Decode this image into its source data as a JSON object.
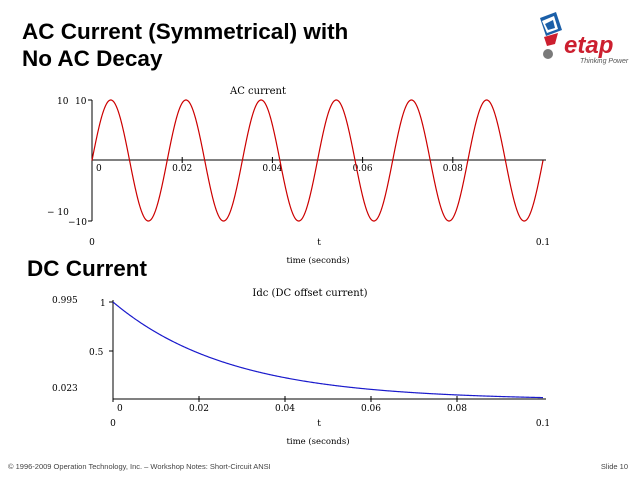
{
  "slide": {
    "title_line1": "AC Current (Symmetrical) with",
    "title_line2": "No AC Decay",
    "section_title": "DC Current",
    "footer": "© 1996-2009 Operation Technology, Inc. – Workshop Notes: Short-Circuit ANSI",
    "slide_number": "Slide 10"
  },
  "logo": {
    "text": "etap",
    "tagline": "Thinking Power",
    "colors": {
      "brand_red": "#cc1f2f",
      "brand_blue": "#1b5fa8",
      "gray": "#7a7a7a"
    }
  },
  "chart_data": [
    {
      "type": "line",
      "title": "AC current",
      "xlabel": "time (seconds)",
      "x_axis_var": "t",
      "xlim": [
        0,
        0.1
      ],
      "ylim": [
        -10,
        10
      ],
      "x_range_labels": [
        "0",
        "0.1"
      ],
      "y_range_labels": [
        "10",
        "− 10"
      ],
      "x_ticks": [
        0,
        0.02,
        0.04,
        0.06,
        0.08
      ],
      "x_tick_labels": [
        "0",
        "0.02",
        "0.04",
        "0.06",
        "0.08"
      ],
      "y_ticks": [
        10,
        -10
      ],
      "y_tick_labels": [
        "10",
        "−10"
      ],
      "color": "#cc0000",
      "series": [
        {
          "function": "10*sin(2*pi*60*t)",
          "amplitude": 10,
          "frequency_hz": 60
        }
      ]
    },
    {
      "type": "line",
      "title": "Idc (DC offset current)",
      "xlabel": "time (seconds)",
      "x_axis_var": "t",
      "xlim": [
        0,
        0.1
      ],
      "ylim": [
        0.023,
        0.995
      ],
      "x_range_labels": [
        "0",
        "0.1"
      ],
      "y_range_labels": [
        "0.995",
        "0.023"
      ],
      "x_ticks": [
        0,
        0.02,
        0.04,
        0.06,
        0.08
      ],
      "x_tick_labels": [
        "0",
        "0.02",
        "0.04",
        "0.06",
        "0.08"
      ],
      "y_ticks": [
        1,
        0.5
      ],
      "y_tick_labels": [
        "1",
        "0.5"
      ],
      "color": "#1a1acc",
      "series": [
        {
          "function": "exp(-t/0.027)",
          "initial": 1,
          "final_approx": 0.023,
          "time_constant_s": 0.027
        }
      ]
    }
  ]
}
